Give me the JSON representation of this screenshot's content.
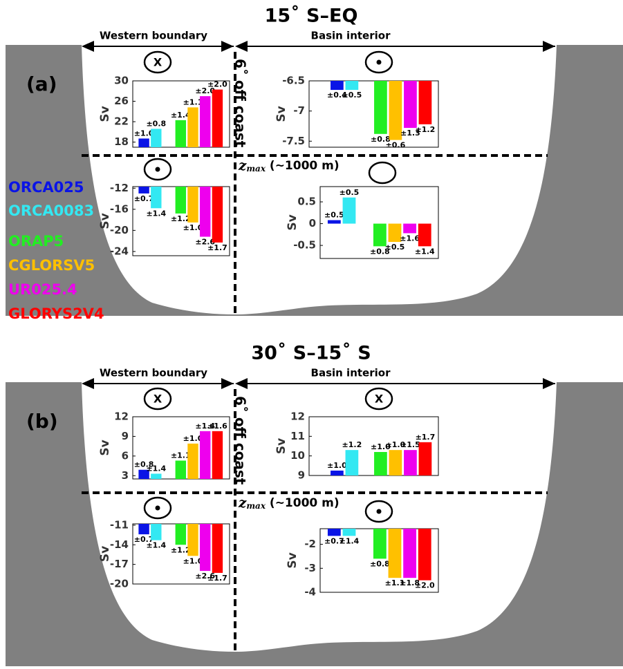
{
  "panels": [
    {
      "title": "15˚ S–EQ",
      "label": "(a)",
      "western": "Western boundary",
      "interior": "Basin interior",
      "offcoast": "6˚ off coast",
      "zmax_var": "z",
      "zmax_sub": "max",
      "zmax_rest": " (~1000 m)"
    },
    {
      "title": "30˚ S–15˚ S",
      "label": "(b)",
      "western": "Western boundary",
      "interior": "Basin interior",
      "offcoast": "6˚ off coast",
      "zmax_var": "z",
      "zmax_sub": "max",
      "zmax_rest": " (~1000 m)"
    }
  ],
  "legend": [
    {
      "name": "ORCA025",
      "color": "#0a14e6"
    },
    {
      "name": "ORCA0083",
      "color": "#33e8f2"
    },
    {
      "name": "ORAP5",
      "color": "#22ee22"
    },
    {
      "name": "CGLORSV5",
      "color": "#ffc000"
    },
    {
      "name": "UR025.4",
      "color": "#ee00ee"
    },
    {
      "name": "GLORYS2V4",
      "color": "#ff0000"
    }
  ],
  "chart_data": [
    {
      "type": "bar",
      "ylabel": "Sv",
      "symbol_label": "X",
      "ylim": [
        17,
        30
      ],
      "yticks": [
        18,
        22,
        26,
        30
      ],
      "values": [
        18.7,
        20.6,
        22.3,
        24.8,
        27.0,
        28.3
      ],
      "error_labels": [
        "±1.0",
        "±0.8",
        "±1.4",
        "±1.1",
        "±2.0",
        "±2.0"
      ]
    },
    {
      "type": "bar",
      "ylabel": "Sv",
      "symbol_dot": true,
      "ylim": [
        -7.6,
        -6.5
      ],
      "yticks": [
        -6.5,
        -7,
        -7.5
      ],
      "values": [
        -6.65,
        -6.65,
        -7.38,
        -7.48,
        -7.28,
        -7.22
      ],
      "error_labels": [
        "±0.4",
        "±0.5",
        "±0.8",
        "±0.6",
        "±1.3",
        "±1.2"
      ]
    },
    {
      "type": "bar",
      "ylabel": "Sv",
      "symbol_dot": true,
      "ylim": [
        -24.8,
        -11.7
      ],
      "yticks": [
        -12,
        -16,
        -20,
        -24
      ],
      "values": [
        -13.0,
        -15.8,
        -16.8,
        -18.5,
        -21.2,
        -22.3
      ],
      "error_labels": [
        "±0.7",
        "±1.4",
        "±1.2",
        "±1.0",
        "±2.6",
        "±1.7"
      ]
    },
    {
      "type": "bar",
      "ylabel": "Sv",
      "ylim": [
        -0.8,
        0.85
      ],
      "yticks": [
        0.5,
        0,
        -0.5
      ],
      "values": [
        0.08,
        0.6,
        -0.52,
        -0.42,
        -0.22,
        -0.52
      ],
      "error_labels": [
        "±0.5",
        "±0.5",
        "±0.8",
        "±0.5",
        "±1.6",
        "±1.4"
      ]
    },
    {
      "type": "bar",
      "ylabel": "Sv",
      "symbol_label": "X",
      "ylim": [
        2.5,
        12
      ],
      "yticks": [
        3,
        6,
        9,
        12
      ],
      "values": [
        3.9,
        3.3,
        5.3,
        7.9,
        9.8,
        9.8
      ],
      "error_labels": [
        "±0.8",
        "±1.4",
        "±1.1",
        "±1.0",
        "±1.4",
        "±1.6"
      ]
    },
    {
      "type": "bar",
      "ylabel": "Sv",
      "symbol_label": "X",
      "ylim": [
        9,
        12
      ],
      "yticks": [
        9,
        10,
        11,
        12
      ],
      "values": [
        9.25,
        10.3,
        10.2,
        10.3,
        10.3,
        10.7
      ],
      "error_labels": [
        "±1.0",
        "±1.2",
        "±1.0",
        "±1.0",
        "±1.5",
        "±1.7"
      ]
    },
    {
      "type": "bar",
      "ylabel": "Sv",
      "symbol_dot": true,
      "ylim": [
        -20,
        -10.8
      ],
      "yticks": [
        -11,
        -14,
        -17,
        -20
      ],
      "values": [
        -12.4,
        -13.3,
        -14.0,
        -15.7,
        -18.0,
        -18.3
      ],
      "error_labels": [
        "±0.7",
        "±1.4",
        "±1.2",
        "±1.0",
        "±2.6",
        "±1.7"
      ]
    },
    {
      "type": "bar",
      "ylabel": "Sv",
      "symbol_dot": true,
      "ylim": [
        -4,
        -1.35
      ],
      "yticks": [
        -2,
        -3,
        -4
      ],
      "values": [
        -1.65,
        -1.65,
        -2.6,
        -3.4,
        -3.4,
        -3.5
      ],
      "error_labels": [
        "±0.7",
        "±1.4",
        "±0.8",
        "±1.1",
        "±1.8",
        "±2.0"
      ]
    }
  ]
}
